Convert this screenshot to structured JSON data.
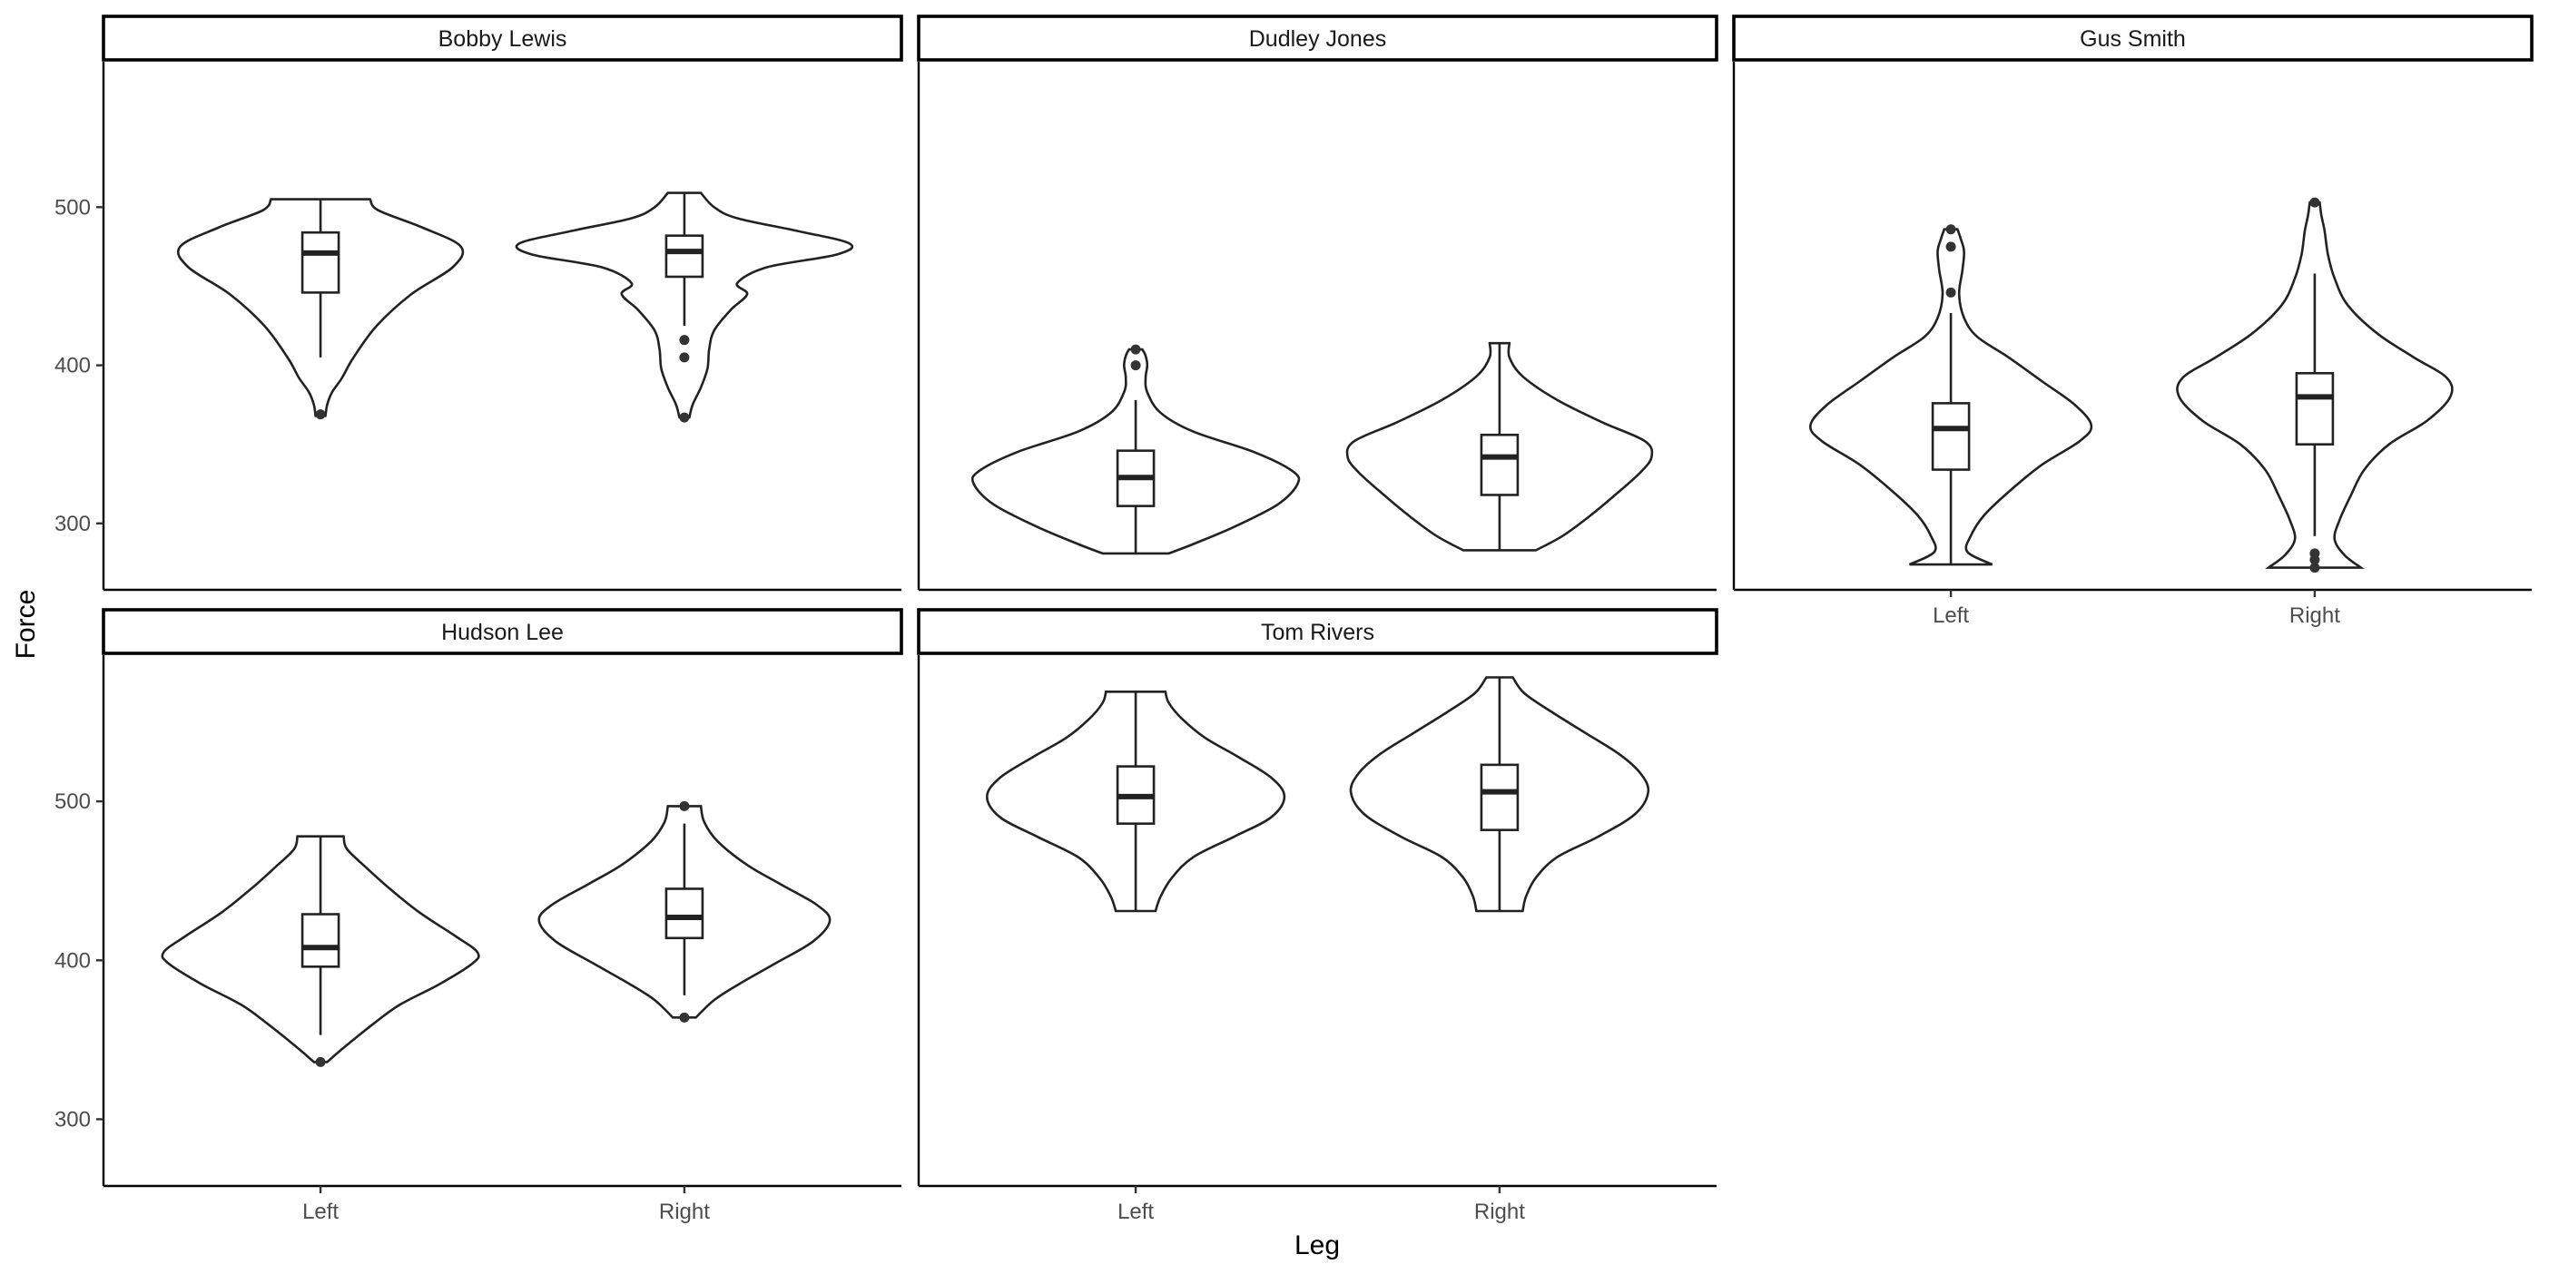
{
  "chart_data": {
    "type": "violin",
    "xlabel": "Leg",
    "ylabel": "Force",
    "ylim": [
      258,
      592
    ],
    "yticks": [
      300,
      400,
      500
    ],
    "categories": [
      "Left",
      "Right"
    ],
    "panels": [
      {
        "title": "Bobby Lewis",
        "groups": [
          {
            "category": "Left",
            "min": 368,
            "q1": 446,
            "median": 471,
            "q3": 484,
            "max": 505,
            "whisker_low": 405,
            "whisker_high": 505,
            "outliers": [
              369
            ],
            "density": [
              [
                368,
                0.03
              ],
              [
                375,
                0.04
              ],
              [
                383,
                0.07
              ],
              [
                392,
                0.13
              ],
              [
                405,
                0.2
              ],
              [
                425,
                0.34
              ],
              [
                445,
                0.55
              ],
              [
                462,
                0.8
              ],
              [
                475,
                0.85
              ],
              [
                487,
                0.62
              ],
              [
                498,
                0.35
              ],
              [
                505,
                0.3
              ]
            ]
          },
          {
            "category": "Right",
            "min": 367,
            "q1": 456,
            "median": 472,
            "q3": 482,
            "max": 509,
            "whisker_low": 425,
            "whisker_high": 509,
            "outliers": [
              367,
              405,
              416
            ],
            "density": [
              [
                367,
                0.03
              ],
              [
                375,
                0.05
              ],
              [
                386,
                0.1
              ],
              [
                398,
                0.14
              ],
              [
                410,
                0.15
              ],
              [
                422,
                0.18
              ],
              [
                435,
                0.28
              ],
              [
                445,
                0.38
              ],
              [
                452,
                0.32
              ],
              [
                462,
                0.5
              ],
              [
                470,
                0.92
              ],
              [
                477,
                1.0
              ],
              [
                485,
                0.68
              ],
              [
                493,
                0.32
              ],
              [
                500,
                0.18
              ],
              [
                509,
                0.1
              ]
            ]
          }
        ]
      },
      {
        "title": "Dudley Jones",
        "groups": [
          {
            "category": "Left",
            "min": 281,
            "q1": 311,
            "median": 329,
            "q3": 346,
            "max": 410,
            "whisker_low": 281,
            "whisker_high": 378,
            "outliers": [
              400,
              410
            ],
            "density": [
              [
                281,
                0.2
              ],
              [
                287,
                0.35
              ],
              [
                298,
                0.6
              ],
              [
                312,
                0.86
              ],
              [
                325,
                0.98
              ],
              [
                333,
                0.95
              ],
              [
                345,
                0.72
              ],
              [
                358,
                0.35
              ],
              [
                370,
                0.15
              ],
              [
                383,
                0.07
              ],
              [
                392,
                0.06
              ],
              [
                400,
                0.07
              ],
              [
                406,
                0.06
              ],
              [
                410,
                0.04
              ]
            ]
          },
          {
            "category": "Right",
            "min": 283,
            "q1": 318,
            "median": 342,
            "q3": 356,
            "max": 414,
            "whisker_low": 283,
            "whisker_high": 414,
            "outliers": [],
            "density": [
              [
                283,
                0.22
              ],
              [
                292,
                0.38
              ],
              [
                305,
                0.55
              ],
              [
                318,
                0.7
              ],
              [
                332,
                0.85
              ],
              [
                342,
                0.92
              ],
              [
                352,
                0.88
              ],
              [
                364,
                0.62
              ],
              [
                378,
                0.35
              ],
              [
                393,
                0.14
              ],
              [
                405,
                0.06
              ],
              [
                414,
                0.06
              ]
            ]
          }
        ]
      },
      {
        "title": "Gus Smith",
        "groups": [
          {
            "category": "Left",
            "min": 274,
            "q1": 334,
            "median": 360,
            "q3": 376,
            "max": 486,
            "whisker_low": 274,
            "whisker_high": 433,
            "outliers": [
              446,
              475,
              486
            ],
            "density": [
              [
                274,
                0.25
              ],
              [
                282,
                0.1
              ],
              [
                292,
                0.12
              ],
              [
                305,
                0.2
              ],
              [
                320,
                0.35
              ],
              [
                337,
                0.55
              ],
              [
                352,
                0.78
              ],
              [
                362,
                0.85
              ],
              [
                375,
                0.75
              ],
              [
                390,
                0.55
              ],
              [
                405,
                0.35
              ],
              [
                418,
                0.16
              ],
              [
                430,
                0.08
              ],
              [
                445,
                0.05
              ],
              [
                460,
                0.07
              ],
              [
                472,
                0.08
              ],
              [
                480,
                0.06
              ],
              [
                486,
                0.04
              ]
            ]
          },
          {
            "category": "Right",
            "min": 272,
            "q1": 350,
            "median": 380,
            "q3": 395,
            "max": 503,
            "whisker_low": 292,
            "whisker_high": 458,
            "outliers": [
              272,
              277,
              281,
              503
            ],
            "density": [
              [
                272,
                0.28
              ],
              [
                280,
                0.18
              ],
              [
                290,
                0.12
              ],
              [
                302,
                0.15
              ],
              [
                318,
                0.22
              ],
              [
                334,
                0.3
              ],
              [
                350,
                0.45
              ],
              [
                365,
                0.68
              ],
              [
                380,
                0.82
              ],
              [
                392,
                0.8
              ],
              [
                405,
                0.6
              ],
              [
                420,
                0.38
              ],
              [
                438,
                0.2
              ],
              [
                455,
                0.12
              ],
              [
                470,
                0.08
              ],
              [
                485,
                0.06
              ],
              [
                495,
                0.04
              ],
              [
                503,
                0.03
              ]
            ]
          }
        ]
      },
      {
        "title": "Hudson Lee",
        "groups": [
          {
            "category": "Left",
            "min": 336,
            "q1": 396,
            "median": 408,
            "q3": 429,
            "max": 478,
            "whisker_low": 353,
            "whisker_high": 478,
            "outliers": [
              336
            ],
            "density": [
              [
                336,
                0.04
              ],
              [
                345,
                0.14
              ],
              [
                360,
                0.32
              ],
              [
                372,
                0.48
              ],
              [
                385,
                0.72
              ],
              [
                398,
                0.92
              ],
              [
                405,
                0.95
              ],
              [
                415,
                0.82
              ],
              [
                430,
                0.6
              ],
              [
                445,
                0.42
              ],
              [
                458,
                0.28
              ],
              [
                470,
                0.16
              ],
              [
                478,
                0.14
              ]
            ]
          },
          {
            "category": "Right",
            "min": 364,
            "q1": 414,
            "median": 427,
            "q3": 445,
            "max": 497,
            "whisker_low": 378,
            "whisker_high": 486,
            "outliers": [
              364,
              497
            ],
            "density": [
              [
                364,
                0.07
              ],
              [
                375,
                0.18
              ],
              [
                385,
                0.33
              ],
              [
                398,
                0.55
              ],
              [
                412,
                0.78
              ],
              [
                425,
                0.88
              ],
              [
                435,
                0.8
              ],
              [
                448,
                0.58
              ],
              [
                460,
                0.38
              ],
              [
                475,
                0.2
              ],
              [
                487,
                0.12
              ],
              [
                497,
                0.1
              ]
            ]
          }
        ]
      },
      {
        "title": "Tom Rivers",
        "groups": [
          {
            "category": "Left",
            "min": 431,
            "q1": 486,
            "median": 503,
            "q3": 522,
            "max": 569,
            "whisker_low": 431,
            "whisker_high": 569,
            "outliers": [],
            "density": [
              [
                431,
                0.12
              ],
              [
                440,
                0.15
              ],
              [
                452,
                0.22
              ],
              [
                465,
                0.35
              ],
              [
                478,
                0.6
              ],
              [
                490,
                0.82
              ],
              [
                503,
                0.9
              ],
              [
                515,
                0.82
              ],
              [
                528,
                0.62
              ],
              [
                540,
                0.42
              ],
              [
                552,
                0.28
              ],
              [
                562,
                0.2
              ],
              [
                569,
                0.18
              ]
            ]
          },
          {
            "category": "Right",
            "min": 431,
            "q1": 482,
            "median": 506,
            "q3": 523,
            "max": 578,
            "whisker_low": 431,
            "whisker_high": 578,
            "outliers": [],
            "density": [
              [
                431,
                0.14
              ],
              [
                440,
                0.16
              ],
              [
                452,
                0.22
              ],
              [
                465,
                0.35
              ],
              [
                478,
                0.6
              ],
              [
                492,
                0.82
              ],
              [
                506,
                0.9
              ],
              [
                518,
                0.85
              ],
              [
                530,
                0.72
              ],
              [
                543,
                0.52
              ],
              [
                556,
                0.32
              ],
              [
                568,
                0.15
              ],
              [
                578,
                0.08
              ]
            ]
          }
        ]
      }
    ],
    "grid": false,
    "legend": "none"
  }
}
